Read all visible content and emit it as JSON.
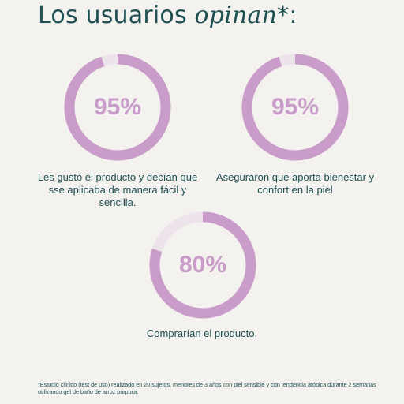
{
  "headline": {
    "text": "Los usuarios ",
    "emphasis": "opinan",
    "suffix": "*:"
  },
  "colors": {
    "accent": "#c99cca",
    "track": "#ede3ea",
    "text": "#1e4f51",
    "background": "#f4f2ef"
  },
  "stats": [
    {
      "percent": 95,
      "label": "95%",
      "caption": "Les gustó el producto y decían que sse aplicaba de manera fácil y sencilla."
    },
    {
      "percent": 95,
      "label": "95%",
      "caption": "Aseguraron que aporta bienestar y confort en la piel"
    },
    {
      "percent": 80,
      "label": "80%",
      "caption": "Comprarían el producto."
    }
  ],
  "footnote": "*Estudio clínico (test de uso) realizado en 20 sujetos, menores de 3 años con piel sensible y con tendencia atópica durante 2 semanas utilizando gel de baño de arroz púrpura."
}
